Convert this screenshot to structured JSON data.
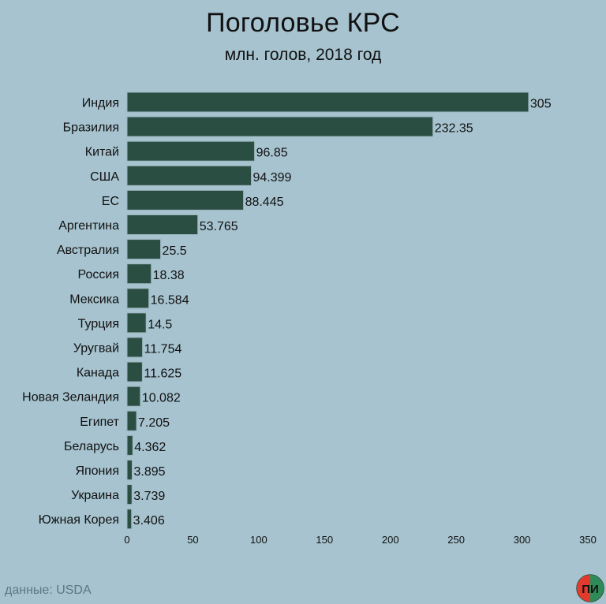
{
  "header": {
    "title": "Поголовье КРС",
    "subtitle": "млн. голов, 2018 год"
  },
  "footer": {
    "source": "данные: USDA",
    "logo_text": "ПИ"
  },
  "colors": {
    "background": "#a6c3cf",
    "bar": "#2b4e43",
    "bar_stroke": "#9bb5bd",
    "text": "#111111",
    "source_text": "#5d7682",
    "logo_left": "#e23b2e",
    "logo_right": "#2e8b57"
  },
  "chart_data": {
    "type": "bar",
    "orientation": "horizontal",
    "title": "Поголовье КРС",
    "subtitle": "млн. голов, 2018 год",
    "xlabel": "",
    "ylabel": "",
    "xlim": [
      0,
      350
    ],
    "x_ticks": [
      0,
      50,
      100,
      150,
      200,
      250,
      300,
      350
    ],
    "grid": false,
    "legend": "none",
    "categories": [
      "Индия",
      "Бразилия",
      "Китай",
      "США",
      "ЕС",
      "Аргентина",
      "Австралия",
      "Россия",
      "Мексика",
      "Турция",
      "Уругвай",
      "Канада",
      "Новая Зеландия",
      "Египет",
      "Беларусь",
      "Япония",
      "Украина",
      "Южная Корея"
    ],
    "values": [
      305,
      232.35,
      96.85,
      94.399,
      88.445,
      53.765,
      25.5,
      18.38,
      16.584,
      14.5,
      11.754,
      11.625,
      10.082,
      7.205,
      4.362,
      3.895,
      3.739,
      3.406
    ],
    "value_labels": [
      "305",
      "232.35",
      "96.85",
      "94.399",
      "88.445",
      "53.765",
      "25.5",
      "18.38",
      "16.584",
      "14.5",
      "11.754",
      "11.625",
      "10.082",
      "7.205",
      "4.362",
      "3.895",
      "3.739",
      "3.406"
    ]
  }
}
